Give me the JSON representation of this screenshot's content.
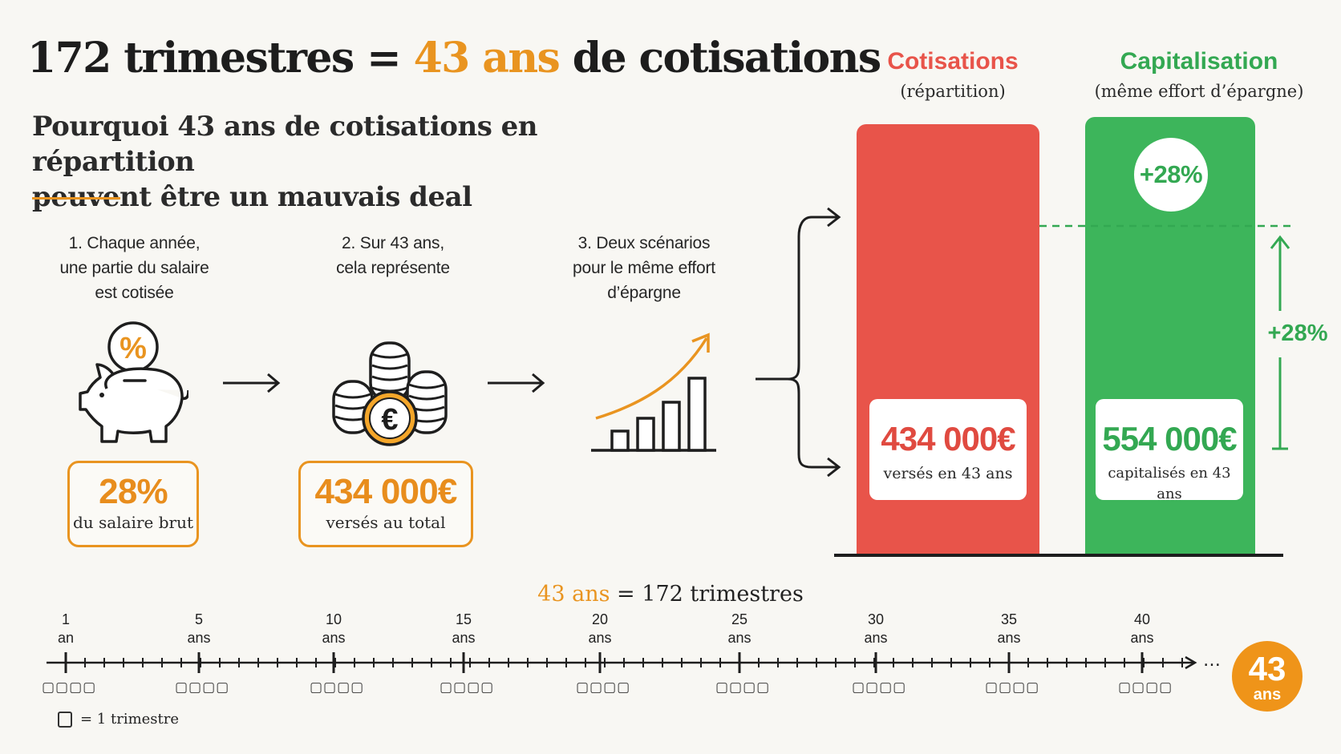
{
  "header": {
    "title_part1": "172 trimestres = ",
    "title_accent": "43 ans",
    "title_part2": " de cotisations",
    "subtitle_line1": "Pourquoi 43 ans de cotisations en répartition",
    "subtitle_line2": "peuvent être un mauvais deal"
  },
  "steps": [
    {
      "label_lines": [
        "1. Chaque année,",
        "une partie du salaire",
        "est cotisée"
      ],
      "icon": "piggy-bank-percent-icon",
      "icon_glyph": "%",
      "value": "28%",
      "value_caption": "du salaire brut"
    },
    {
      "label_lines": [
        "2. Sur 43 ans,",
        "cela représente"
      ],
      "icon": "coins-euro-icon",
      "icon_glyph": "€",
      "value": "434 000€",
      "value_caption": "versés au total"
    },
    {
      "label_lines": [
        "3. Deux scénarios",
        "pour le même effort",
        "d’épargne"
      ],
      "icon": "growth-chart-icon"
    }
  ],
  "comparison": {
    "repartition": {
      "heading": "Cotisations",
      "subheading": "(répartition)",
      "amount": "434 000€",
      "caption": "versés en 43 ans",
      "color": "#e8544a"
    },
    "capitalisation": {
      "heading": "Capitalisation",
      "subheading": "(même effort d’épargne)",
      "amount": "554 000€",
      "caption": "capitalisés en 43 ans",
      "color": "#3db55b",
      "badge": "+28%",
      "gain_label": "+28%"
    },
    "title_red": "#e8544a",
    "title_green": "#33a852"
  },
  "timeline": {
    "caption_accent": "43 ans",
    "caption_equals": "=",
    "caption_rest": "172 trimestres",
    "ticks": [
      {
        "number": "1",
        "unit": "an"
      },
      {
        "number": "5",
        "unit": "ans"
      },
      {
        "number": "10",
        "unit": "ans"
      },
      {
        "number": "15",
        "unit": "ans"
      },
      {
        "number": "20",
        "unit": "ans"
      },
      {
        "number": "25",
        "unit": "ans"
      },
      {
        "number": "30",
        "unit": "ans"
      },
      {
        "number": "35",
        "unit": "ans"
      },
      {
        "number": "40",
        "unit": "ans"
      }
    ],
    "quarter_boxes": "▢▢▢▢",
    "ellipsis": "…",
    "end_badge_number": "43",
    "end_badge_unit": "ans",
    "legend": "= 1 trimestre"
  }
}
